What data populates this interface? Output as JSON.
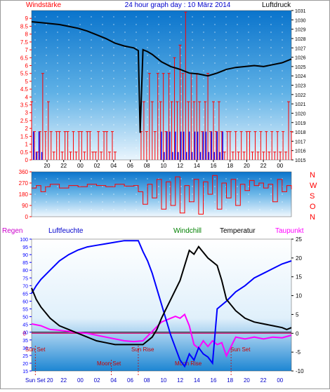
{
  "header": {
    "left_label": "Windstärke",
    "title": "24 hour graph day : 10 März 2014",
    "right_label": "Luftdruck"
  },
  "labels": {
    "regen": "Regen",
    "luftfeuchte": "Luftfeuchte",
    "windchill": "Windchill",
    "temperatur": "Temperatur",
    "taupunkt": "Taupunkt"
  },
  "compass": [
    "N",
    "W",
    "S",
    "O",
    "N"
  ],
  "markers": {
    "sun_set": "Sun Set",
    "sun_rise": "Sun Rise",
    "moon_set": "Moon Set",
    "moon_rise": "Moon Rise",
    "sun_set_2": "Sun Set",
    "bottom_left": "Sun Set 20"
  },
  "colors": {
    "background_top": "#0b79cf",
    "background_bottom": "#e8f4fc",
    "wind": "#ff0000",
    "gust": "#0000ff",
    "pressure": "#000000",
    "direction": "#ff0000",
    "humidity": "#0000ff",
    "temperature": "#000000",
    "dewpoint": "#ff00ff",
    "windchill": "#008000",
    "left_axis": "#ff0000",
    "right_axis": "#000000",
    "bottom_left_axis": "#0000ff",
    "regen_label": "#cc00cc",
    "zero_line": "#cc0066"
  },
  "chart_data": [
    {
      "type": "line",
      "name": "wind_pressure",
      "x_ticks": [
        "20",
        "22",
        "00",
        "02",
        "04",
        "06",
        "08",
        "10",
        "12",
        "14",
        "16",
        "18",
        "20",
        "22",
        "00"
      ],
      "y_left_ticks": [
        "0",
        "0.5",
        "1",
        "1.5",
        "2",
        "2.5",
        "3",
        "3.5",
        "4",
        "4.5",
        "5",
        "5.5",
        "6",
        "6.5",
        "7",
        "7.5",
        "8",
        "8.5",
        "9"
      ],
      "y_right_ticks": [
        "1015",
        "1016",
        "1017",
        "1018",
        "1019",
        "1020",
        "1021",
        "1022",
        "1023",
        "1024",
        "1025",
        "1026",
        "1027",
        "1028",
        "1029",
        "1030",
        "1031"
      ],
      "ylim_left": [
        0,
        9.5
      ],
      "ylim_right": [
        1015,
        1031
      ],
      "pressure_series": {
        "x": [
          0,
          1,
          2,
          3,
          4,
          5,
          6,
          7,
          8,
          9,
          10,
          11,
          11.5,
          11.7,
          12,
          12.5,
          13,
          14,
          15,
          16,
          17,
          18,
          19,
          20,
          21,
          22,
          23,
          24,
          25,
          26,
          27,
          28
        ],
        "y": [
          1029.8,
          1029.7,
          1029.6,
          1029.5,
          1029.3,
          1029.1,
          1028.8,
          1028.4,
          1028.0,
          1027.5,
          1027.2,
          1027.0,
          1026.7,
          1017.9,
          1026.8,
          1026.6,
          1026.3,
          1025.5,
          1025.0,
          1024.7,
          1024.3,
          1024.2,
          1024.0,
          1024.3,
          1024.7,
          1024.9,
          1025.0,
          1025.1,
          1025.0,
          1025.2,
          1025.4,
          1025.8
        ]
      },
      "wind_series": {
        "x": [
          0,
          0.3,
          0.6,
          0.9,
          1.2,
          1.5,
          1.8,
          2.1,
          2.4,
          2.7,
          3.0,
          3.3,
          3.6,
          3.9,
          4.2,
          4.5,
          4.8,
          5.1,
          5.4,
          5.7,
          6.0,
          6.3,
          6.6,
          6.9,
          7.2,
          7.5,
          7.8,
          8.1,
          8.4,
          8.7,
          9.0,
          11.8,
          12.1,
          12.4,
          12.7,
          13.0,
          13.3,
          13.6,
          13.9,
          14.2,
          14.5,
          14.8,
          15.1,
          15.4,
          15.7,
          16.0,
          16.3,
          16.6,
          16.9,
          17.2,
          17.5,
          17.8,
          18.1,
          18.4,
          18.7,
          19.0,
          19.3,
          19.6,
          19.9,
          20.2,
          20.5,
          20.8,
          21.1,
          21.4,
          21.7,
          22.0,
          22.3,
          22.6,
          22.9,
          23.2,
          23.5,
          23.8,
          24.1,
          24.4,
          24.7,
          25.0,
          25.3,
          25.6,
          25.9,
          26.2,
          26.5,
          26.8,
          27.1,
          27.4,
          27.7,
          28.0
        ],
        "y": [
          3.7,
          1.8,
          0.5,
          1.8,
          5.5,
          1.8,
          3.7,
          1.8,
          0.5,
          1.8,
          1.8,
          0.5,
          1.8,
          1.8,
          0.5,
          1.8,
          0.5,
          1.8,
          1.8,
          0.5,
          1.8,
          1.8,
          0.5,
          0.5,
          1.8,
          0.5,
          1.8,
          1.8,
          0.5,
          1.8,
          0.5,
          1.8,
          3.7,
          1.8,
          5.5,
          3.7,
          1.8,
          5.5,
          3.7,
          5.5,
          1.8,
          5.5,
          3.7,
          6.5,
          3.7,
          7.3,
          5.5,
          9.4,
          3.7,
          5.5,
          3.7,
          5.5,
          3.7,
          1.8,
          3.7,
          5.5,
          1.8,
          3.7,
          1.8,
          3.7,
          1.8,
          0.5,
          1.8,
          1.8,
          0.5,
          1.8,
          0.5,
          1.8,
          0.5,
          1.8,
          1.8,
          0.5,
          1.8,
          0.5,
          1.8,
          0.5,
          1.8,
          0.5,
          1.8,
          0.5,
          1.8,
          0.5,
          1.8,
          0.5,
          3.7,
          1.8
        ]
      },
      "gust_series": {
        "x": [
          0.2,
          0.5,
          0.8,
          1.1,
          14.0,
          14.3,
          14.6,
          14.9,
          15.2,
          15.5,
          15.8,
          16.1,
          16.4,
          16.7,
          17.0,
          17.3,
          17.6,
          17.9,
          18.2,
          18.5,
          18.8,
          19.1,
          19.4,
          19.7,
          20.0,
          20.3,
          20.6
        ],
        "y": [
          1.8,
          0.5,
          1.8,
          0.5,
          1.8,
          0.5,
          1.8,
          1.8,
          0.5,
          1.8,
          0.5,
          1.8,
          1.8,
          0.5,
          1.8,
          0.5,
          1.8,
          1.8,
          0.5,
          1.8,
          1.8,
          0.5,
          1.8,
          0.5,
          1.8,
          0.5,
          1.8
        ]
      }
    },
    {
      "type": "line",
      "name": "wind_direction",
      "y_ticks": [
        "0",
        "90",
        "180",
        "270",
        "360"
      ],
      "ylim": [
        0,
        360
      ],
      "direction_series": {
        "x": [
          0,
          0.5,
          1,
          1.5,
          2,
          3,
          4,
          5,
          6,
          7,
          8,
          9,
          10,
          11,
          11.5,
          12,
          12.5,
          13,
          13.5,
          14,
          14.5,
          15,
          15.5,
          16,
          16.5,
          17,
          17.5,
          18,
          18.5,
          19,
          19.5,
          20,
          20.5,
          21,
          21.5,
          22,
          22.5,
          23,
          23.5,
          24,
          24.5,
          25,
          25.5,
          26,
          26.5,
          27,
          27.5,
          28
        ],
        "y": [
          230,
          250,
          200,
          240,
          260,
          230,
          250,
          240,
          260,
          250,
          240,
          260,
          245,
          250,
          200,
          100,
          260,
          150,
          300,
          60,
          280,
          90,
          320,
          30,
          250,
          120,
          300,
          20,
          280,
          180,
          330,
          60,
          270,
          150,
          300,
          90,
          260,
          210,
          290,
          250,
          270,
          230,
          260,
          120,
          300,
          200,
          250,
          220
        ]
      }
    },
    {
      "type": "line",
      "name": "humidity_temperature",
      "y_left_ticks": [
        "15",
        "20",
        "25",
        "30",
        "35",
        "40",
        "45",
        "50",
        "55",
        "60",
        "65",
        "70",
        "75",
        "80",
        "85",
        "90",
        "95",
        "100"
      ],
      "y_right_ticks": [
        "-10",
        "-5",
        "0",
        "5",
        "10",
        "15",
        "20",
        "25"
      ],
      "ylim_left": [
        15,
        100
      ],
      "ylim_right": [
        -10,
        25
      ],
      "humidity_series": {
        "x": [
          0,
          0.5,
          1,
          2,
          3,
          4,
          5,
          6,
          7,
          8,
          9,
          10,
          11,
          11.5,
          12,
          12.5,
          13,
          13.5,
          14,
          14.5,
          15,
          15.5,
          16,
          16.5,
          17,
          17.5,
          18,
          18.5,
          19,
          19.5,
          20,
          21,
          22,
          23,
          24,
          25,
          26,
          27,
          28
        ],
        "y": [
          65,
          70,
          74,
          80,
          86,
          90,
          93,
          95,
          96,
          97,
          98,
          99,
          99,
          99,
          92,
          86,
          78,
          68,
          58,
          48,
          38,
          30,
          22,
          18,
          26,
          22,
          30,
          26,
          24,
          20,
          55,
          60,
          66,
          70,
          75,
          78,
          81,
          84,
          86
        ]
      },
      "temperature_series": {
        "x": [
          0,
          0.5,
          1,
          2,
          3,
          4,
          5,
          6,
          7,
          8,
          9,
          10,
          11,
          12,
          12.5,
          13,
          13.5,
          14,
          15,
          16,
          16.5,
          17,
          17.5,
          18,
          19,
          20,
          20.5,
          21,
          22,
          23,
          24,
          25,
          26,
          27,
          27.5,
          28
        ],
        "y": [
          12,
          9,
          7,
          4,
          2,
          1,
          0,
          -1,
          -2,
          -2.5,
          -3,
          -3,
          -3,
          -3,
          -2,
          -1,
          1,
          4,
          9,
          14,
          18,
          22,
          21,
          23,
          20,
          18,
          14,
          9,
          6,
          4,
          3,
          2.5,
          2,
          1.5,
          1,
          1.5
        ]
      },
      "dewpoint_series": {
        "x": [
          0,
          1,
          2,
          3,
          4,
          5,
          6,
          7,
          8,
          9,
          10,
          11,
          12,
          13,
          14,
          15,
          15.5,
          16,
          16.5,
          17,
          17.5,
          18,
          18.5,
          19,
          19.5,
          20,
          20.5,
          21,
          22,
          23,
          24,
          25,
          26,
          27,
          28
        ],
        "y": [
          2.5,
          2.0,
          1.0,
          0.8,
          0.5,
          0.2,
          0.0,
          -0.5,
          -1.0,
          -1.5,
          -2.0,
          -2.2,
          -2.0,
          0.5,
          3.0,
          4.0,
          4.5,
          4.0,
          5.0,
          2.0,
          -3.0,
          -4.0,
          -2.0,
          -3.5,
          -2.0,
          -3.0,
          -2.5,
          -6.0,
          -1.0,
          -1.5,
          -1.0,
          -1.5,
          -1.0,
          -1.2,
          -0.5
        ]
      },
      "zero_line_y": 0
    }
  ]
}
